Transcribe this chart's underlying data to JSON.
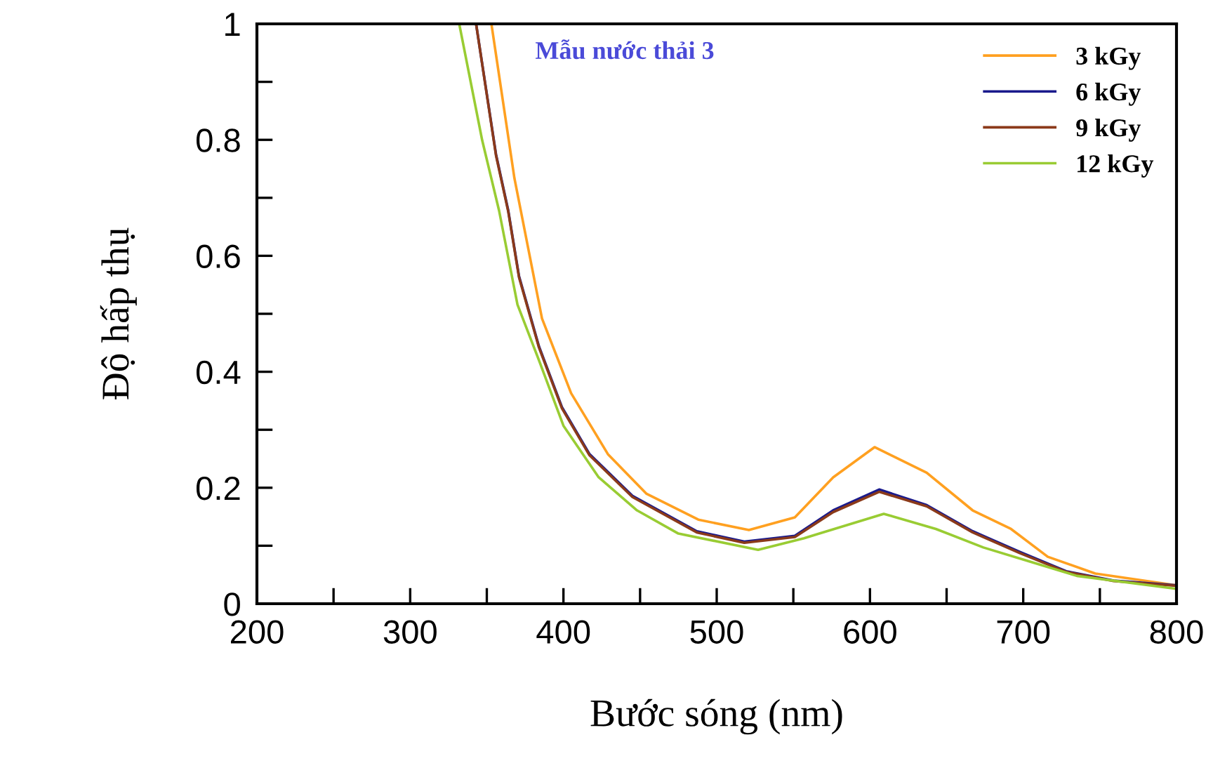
{
  "chart_data": {
    "type": "line",
    "title": "Mẫu nước thải 3",
    "xlabel": "Bước sóng (nm)",
    "ylabel": "Độ hấp thụ",
    "xlim": [
      200,
      800
    ],
    "ylim": [
      0,
      1
    ],
    "xticks": [
      200,
      {
        "value": 250,
        "label": null
      },
      300,
      {
        "value": 350,
        "label": null
      },
      400,
      {
        "value": 450,
        "label": null
      },
      500,
      {
        "value": 550,
        "label": null
      },
      600,
      {
        "value": 650,
        "label": null
      },
      700,
      {
        "value": 750,
        "label": null
      },
      800
    ],
    "yticks": [
      0,
      {
        "value": 0.1,
        "label": null
      },
      0.2,
      {
        "value": 0.3,
        "label": null
      },
      0.4,
      {
        "value": 0.5,
        "label": null
      },
      0.6,
      {
        "value": 0.7,
        "label": null
      },
      0.8,
      {
        "value": 0.9,
        "label": null
      },
      1
    ],
    "grid": false,
    "legend": "top right",
    "marker": "none",
    "line_style": "solid",
    "series": [
      {
        "name": "3 kGy",
        "color": "#ffa020",
        "x": [
          353,
          368,
          386,
          405,
          429,
          454,
          488,
          521,
          551,
          576,
          603,
          637,
          667,
          692,
          716,
          747,
          799
        ],
        "values": [
          1.0,
          0.734,
          0.492,
          0.363,
          0.258,
          0.19,
          0.145,
          0.127,
          0.149,
          0.218,
          0.27,
          0.226,
          0.161,
          0.129,
          0.081,
          0.052,
          0.032
        ]
      },
      {
        "name": "6 kGy",
        "color": "#1a1a8c",
        "x": [
          343,
          356,
          364,
          371,
          384,
          399,
          417,
          445,
          487,
          518,
          551,
          576,
          606,
          637,
          667,
          698,
          728,
          759,
          799
        ],
        "values": [
          1.0,
          0.775,
          0.678,
          0.565,
          0.444,
          0.339,
          0.258,
          0.186,
          0.125,
          0.107,
          0.117,
          0.161,
          0.197,
          0.17,
          0.125,
          0.089,
          0.056,
          0.04,
          0.032
        ]
      },
      {
        "name": "9 kGy",
        "color": "#8b3a1a",
        "x": [
          343,
          356,
          364,
          371,
          384,
          399,
          417,
          445,
          487,
          518,
          551,
          576,
          606,
          637,
          667,
          698,
          728,
          759,
          799
        ],
        "values": [
          1.0,
          0.773,
          0.676,
          0.563,
          0.442,
          0.337,
          0.256,
          0.184,
          0.123,
          0.105,
          0.115,
          0.158,
          0.193,
          0.168,
          0.123,
          0.087,
          0.055,
          0.039,
          0.031
        ]
      },
      {
        "name": "12 kGy",
        "color": "#99cc33",
        "x": [
          332,
          347,
          358,
          370,
          384,
          400,
          423,
          448,
          475,
          527,
          557,
          609,
          643,
          674,
          704,
          735,
          799
        ],
        "values": [
          1.0,
          0.799,
          0.678,
          0.516,
          0.42,
          0.307,
          0.218,
          0.161,
          0.121,
          0.093,
          0.113,
          0.155,
          0.129,
          0.097,
          0.073,
          0.048,
          0.026
        ]
      }
    ]
  }
}
